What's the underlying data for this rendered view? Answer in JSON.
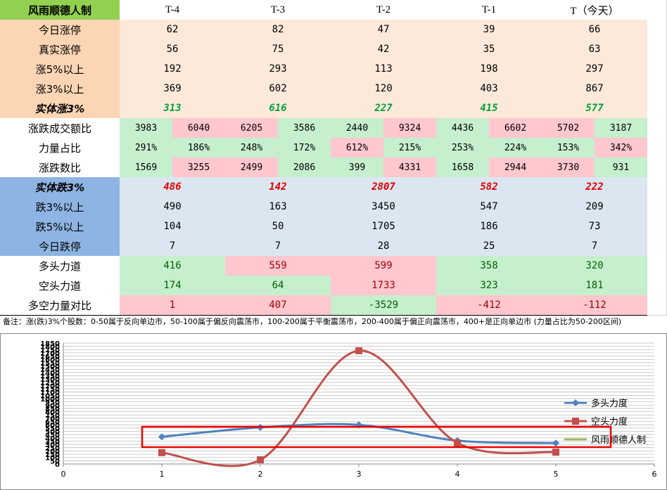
{
  "table": {
    "header": [
      "风雨顺德人制",
      "T-4",
      "T-3",
      "T-2",
      "T-1",
      "T（今天）"
    ],
    "rows": [
      [
        "今日涨停",
        62,
        82,
        47,
        39,
        66
      ],
      [
        "真实涨停",
        56,
        75,
        42,
        35,
        63
      ],
      [
        "涨5%以上",
        192,
        293,
        113,
        198,
        297
      ],
      [
        "涨3%以上",
        369,
        602,
        120,
        403,
        867
      ],
      [
        "实体涨3%",
        313,
        616,
        227,
        415,
        577
      ],
      [
        "涨跌成交额比",
        [
          3983,
          6040
        ],
        [
          6205,
          3586
        ],
        [
          2440,
          9324
        ],
        [
          4436,
          6602
        ],
        [
          5702,
          3187
        ]
      ],
      [
        "力量占比",
        [
          "291%",
          "186%"
        ],
        [
          "248%",
          "172%"
        ],
        [
          "612%",
          "215%"
        ],
        [
          "253%",
          "224%"
        ],
        [
          "153%",
          "342%"
        ]
      ],
      [
        "涨跌数比",
        [
          1569,
          3255
        ],
        [
          2499,
          2086
        ],
        [
          399,
          4331
        ],
        [
          1658,
          2944
        ],
        [
          3730,
          931
        ]
      ],
      [
        "实体跌3%",
        486,
        142,
        2807,
        582,
        222
      ],
      [
        "跌3%以上",
        490,
        163,
        3450,
        547,
        209
      ],
      [
        "跌5%以上",
        104,
        50,
        1705,
        186,
        73
      ],
      [
        "今日跌停",
        7,
        7,
        28,
        25,
        7
      ],
      [
        "多头力道",
        416,
        559,
        599,
        358,
        320
      ],
      [
        "空头力道",
        174,
        64,
        1733,
        323,
        181
      ],
      [
        "多空力量对比",
        1,
        407,
        -3529,
        -412,
        -112
      ]
    ],
    "note": "备注：涨(跌)3%个股数：0-50属于反向单边市，50-100属于偏反向震荡市，100-200属于平衡震荡市，200-400属于偏正向震荡市，400+是正向单边市 (力量占比为50-200区间)"
  },
  "chart_data": {
    "type": "line",
    "smooth": true,
    "grid": true,
    "legend": "right",
    "xlim": [
      0,
      6
    ],
    "xticks": [
      0,
      1,
      2,
      3,
      4,
      5,
      6
    ],
    "ylim": [
      0,
      1850
    ],
    "yticks": [
      0,
      50,
      100,
      150,
      200,
      250,
      300,
      350,
      400,
      450,
      500,
      550,
      600,
      650,
      700,
      750,
      800,
      850,
      900,
      950,
      1000,
      1050,
      1100,
      1150,
      1200,
      1250,
      1300,
      1350,
      1400,
      1450,
      1500,
      1550,
      1600,
      1650,
      1700,
      1750,
      1800,
      1850
    ],
    "x": [
      1,
      2,
      3,
      4,
      5
    ],
    "series": [
      {
        "name": "多头力度",
        "color": "#4f81bd",
        "marker": "diamond",
        "values": [
          416,
          559,
          599,
          358,
          320
        ]
      },
      {
        "name": "空头力度",
        "color": "#c0504d",
        "marker": "square",
        "values": [
          174,
          64,
          1733,
          323,
          181
        ]
      },
      {
        "name": "风雨顺德人制",
        "color": "#9bbb59"
      }
    ]
  }
}
